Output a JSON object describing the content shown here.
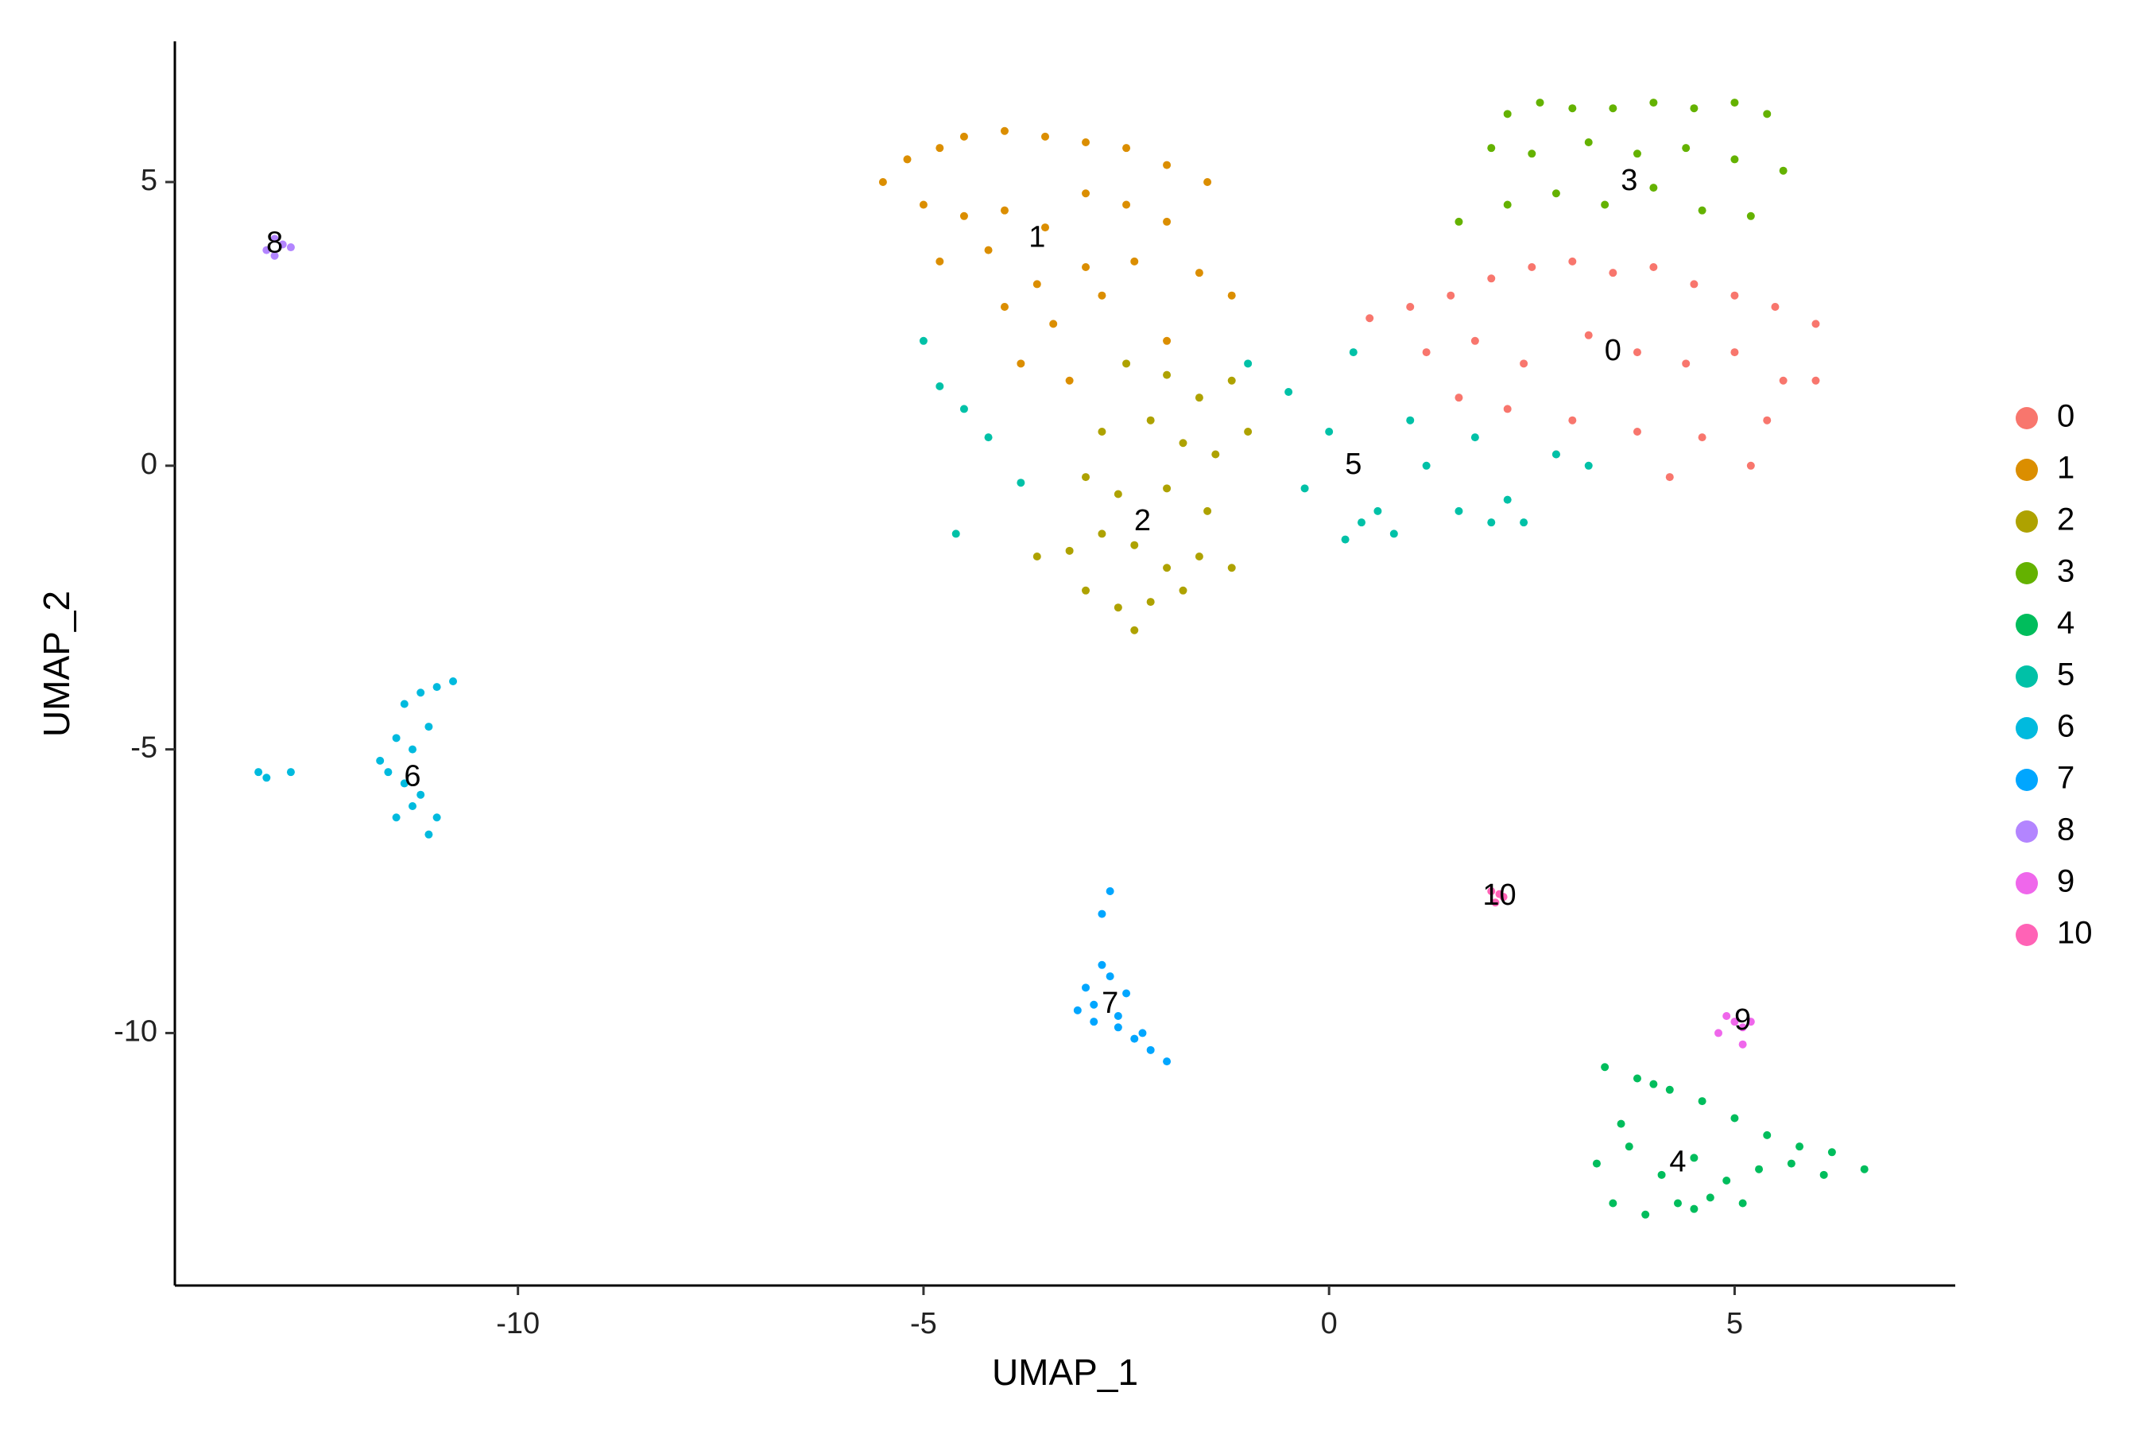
{
  "chart_data": {
    "type": "scatter",
    "xlabel": "UMAP_1",
    "ylabel": "UMAP_2",
    "xlim": [
      -14.23,
      7.72
    ],
    "ylim": [
      -14.45,
      7.48
    ],
    "xticks": [
      -10,
      -5,
      0,
      5
    ],
    "yticks": [
      -10,
      -5,
      0,
      5
    ],
    "legend": "right",
    "series": [
      {
        "name": "0",
        "color": "#F8766D",
        "label_x": 3.5,
        "label_y": 2.0,
        "x": [
          1.0,
          1.5,
          2.0,
          2.5,
          3.0,
          3.5,
          4.0,
          4.5,
          5.0,
          5.5,
          6.0,
          1.2,
          1.8,
          2.4,
          3.2,
          3.8,
          4.4,
          5.0,
          5.6,
          2.2,
          3.0,
          3.8,
          4.6,
          5.4,
          1.6,
          2.8,
          4.2,
          5.2,
          0.5,
          6.0
        ],
        "y": [
          2.8,
          3.0,
          3.3,
          3.5,
          3.6,
          3.4,
          3.5,
          3.2,
          3.0,
          2.8,
          2.5,
          2.0,
          2.2,
          1.8,
          2.3,
          2.0,
          1.8,
          2.0,
          1.5,
          1.0,
          0.8,
          0.6,
          0.5,
          0.8,
          1.2,
          0.2,
          -0.2,
          0.0,
          2.6,
          1.5
        ]
      },
      {
        "name": "1",
        "color": "#DB8E00",
        "label_x": -3.6,
        "label_y": 4.0,
        "x": [
          -5.5,
          -5.2,
          -4.8,
          -4.5,
          -4.0,
          -3.5,
          -3.0,
          -2.5,
          -2.0,
          -1.5,
          -5.0,
          -4.5,
          -4.0,
          -3.5,
          -3.0,
          -2.5,
          -2.0,
          -4.8,
          -4.2,
          -3.6,
          -3.0,
          -2.4,
          -1.6,
          -4.0,
          -3.4,
          -2.8,
          -3.8,
          -3.2,
          -1.2,
          -2.0
        ],
        "y": [
          5.0,
          5.4,
          5.6,
          5.8,
          5.9,
          5.8,
          5.7,
          5.6,
          5.3,
          5.0,
          4.6,
          4.4,
          4.5,
          4.2,
          4.8,
          4.6,
          4.3,
          3.6,
          3.8,
          3.2,
          3.5,
          3.6,
          3.4,
          2.8,
          2.5,
          3.0,
          1.8,
          1.5,
          3.0,
          2.2
        ]
      },
      {
        "name": "2",
        "color": "#AEA200",
        "label_x": -2.3,
        "label_y": -1.0,
        "x": [
          -2.5,
          -2.0,
          -1.6,
          -1.2,
          -2.8,
          -2.2,
          -1.8,
          -1.4,
          -1.0,
          -3.0,
          -2.6,
          -2.0,
          -1.5,
          -3.6,
          -3.2,
          -2.8,
          -2.4,
          -2.0,
          -1.6,
          -1.2,
          -3.0,
          -2.6,
          -2.2,
          -1.8,
          -2.4
        ],
        "y": [
          1.8,
          1.6,
          1.2,
          1.5,
          0.6,
          0.8,
          0.4,
          0.2,
          0.6,
          -0.2,
          -0.5,
          -0.4,
          -0.8,
          -1.6,
          -1.5,
          -1.2,
          -1.4,
          -1.8,
          -1.6,
          -1.8,
          -2.2,
          -2.5,
          -2.4,
          -2.2,
          -2.9
        ]
      },
      {
        "name": "3",
        "color": "#64B200",
        "label_x": 3.7,
        "label_y": 5.0,
        "x": [
          2.2,
          2.6,
          3.0,
          3.5,
          4.0,
          4.5,
          5.0,
          5.4,
          2.0,
          2.5,
          3.2,
          3.8,
          4.4,
          5.0,
          5.6,
          1.6,
          2.2,
          2.8,
          3.4,
          4.0,
          4.6,
          5.2
        ],
        "y": [
          6.2,
          6.4,
          6.3,
          6.3,
          6.4,
          6.3,
          6.4,
          6.2,
          5.6,
          5.5,
          5.7,
          5.5,
          5.6,
          5.4,
          5.2,
          4.3,
          4.6,
          4.8,
          4.6,
          4.9,
          4.5,
          4.4
        ]
      },
      {
        "name": "4",
        "color": "#00BD5C",
        "label_x": 4.3,
        "label_y": -12.3,
        "x": [
          3.4,
          3.8,
          4.2,
          4.6,
          5.0,
          5.4,
          5.8,
          6.2,
          6.6,
          3.3,
          3.7,
          4.1,
          4.5,
          4.9,
          5.3,
          5.7,
          6.1,
          3.5,
          3.9,
          4.3,
          4.7,
          5.1,
          4.0,
          4.5,
          3.6
        ],
        "y": [
          -10.6,
          -10.8,
          -11.0,
          -11.2,
          -11.5,
          -11.8,
          -12.0,
          -12.1,
          -12.4,
          -12.3,
          -12.0,
          -12.5,
          -12.2,
          -12.6,
          -12.4,
          -12.3,
          -12.5,
          -13.0,
          -13.2,
          -13.0,
          -12.9,
          -13.0,
          -10.9,
          -13.1,
          -11.6
        ]
      },
      {
        "name": "5",
        "color": "#00C1A7",
        "label_x": 0.3,
        "label_y": 0.0,
        "x": [
          -5.0,
          -4.8,
          -4.5,
          -4.2,
          -3.8,
          -1.0,
          -0.5,
          0.0,
          0.4,
          0.8,
          1.2,
          1.6,
          2.0,
          2.4,
          2.8,
          3.2,
          -0.3,
          0.2,
          0.6,
          1.8,
          2.2,
          -4.6,
          0.3,
          1.0
        ],
        "y": [
          2.2,
          1.4,
          1.0,
          0.5,
          -0.3,
          1.8,
          1.3,
          0.6,
          -1.0,
          -1.2,
          0.0,
          -0.8,
          -1.0,
          -1.0,
          0.2,
          0.0,
          -0.4,
          -1.3,
          -0.8,
          0.5,
          -0.6,
          -1.2,
          2.0,
          0.8
        ]
      },
      {
        "name": "6",
        "color": "#00BADE",
        "label_x": -11.3,
        "label_y": -5.5,
        "x": [
          -11.4,
          -11.2,
          -11.0,
          -10.8,
          -11.5,
          -11.3,
          -11.1,
          -11.6,
          -11.4,
          -11.2,
          -11.0,
          -11.3,
          -11.1,
          -13.2,
          -13.1,
          -12.8,
          -11.7,
          -11.5
        ],
        "y": [
          -4.2,
          -4.0,
          -3.9,
          -3.8,
          -4.8,
          -5.0,
          -4.6,
          -5.4,
          -5.6,
          -5.8,
          -6.2,
          -6.0,
          -6.5,
          -5.4,
          -5.5,
          -5.4,
          -5.2,
          -6.2
        ]
      },
      {
        "name": "7",
        "color": "#00A6FF",
        "label_x": -2.7,
        "label_y": -9.5,
        "x": [
          -2.7,
          -2.8,
          -3.0,
          -2.9,
          -2.7,
          -2.5,
          -3.1,
          -2.9,
          -2.6,
          -2.4,
          -2.2,
          -2.0,
          -2.8,
          -2.6,
          -2.3
        ],
        "y": [
          -7.5,
          -7.9,
          -9.2,
          -9.5,
          -9.0,
          -9.3,
          -9.6,
          -9.8,
          -9.9,
          -10.1,
          -10.3,
          -10.5,
          -8.8,
          -9.7,
          -10.0
        ]
      },
      {
        "name": "8",
        "color": "#B385FF",
        "label_x": -13.0,
        "label_y": 3.9,
        "x": [
          -13.1,
          -13.0,
          -12.9,
          -13.0,
          -12.8
        ],
        "y": [
          3.8,
          4.0,
          3.9,
          3.7,
          3.85
        ]
      },
      {
        "name": "9",
        "color": "#EF67EB",
        "label_x": 5.1,
        "label_y": -9.8,
        "x": [
          4.9,
          5.0,
          5.1,
          5.2,
          4.8,
          5.1
        ],
        "y": [
          -9.7,
          -9.8,
          -9.9,
          -9.8,
          -10.0,
          -10.2
        ]
      },
      {
        "name": "10",
        "color": "#FF63B6",
        "label_x": 2.1,
        "label_y": -7.6,
        "x": [
          2.0,
          2.1,
          2.15,
          2.05
        ],
        "y": [
          -7.5,
          -7.55,
          -7.6,
          -7.7
        ]
      }
    ]
  }
}
